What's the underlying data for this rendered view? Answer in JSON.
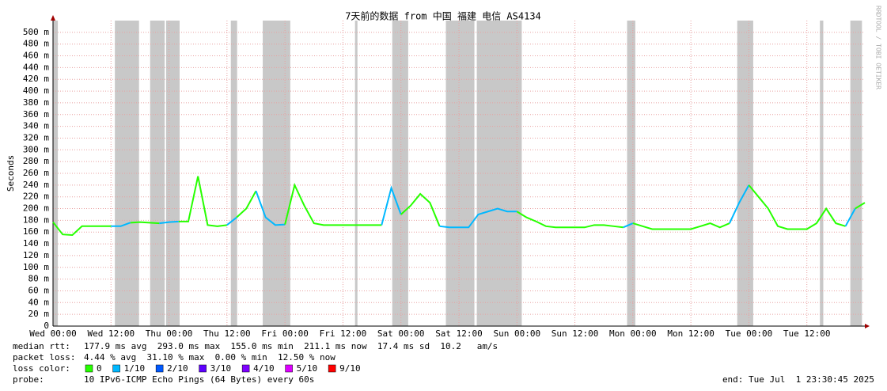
{
  "chart_data": {
    "type": "line",
    "title": "7天前的数据 from 中国 福建 电信 AS4134",
    "y_label": "Seconds",
    "watermark": "RRDTOOL / TOBI OETIKER",
    "xlim": [
      0,
      168
    ],
    "ylim": [
      0,
      520
    ],
    "xticks": [
      {
        "value": 0,
        "label": "Wed 00:00"
      },
      {
        "value": 12,
        "label": "Wed 12:00"
      },
      {
        "value": 24,
        "label": "Thu 00:00"
      },
      {
        "value": 36,
        "label": "Thu 12:00"
      },
      {
        "value": 48,
        "label": "Fri 00:00"
      },
      {
        "value": 60,
        "label": "Fri 12:00"
      },
      {
        "value": 72,
        "label": "Sat 00:00"
      },
      {
        "value": 84,
        "label": "Sat 12:00"
      },
      {
        "value": 96,
        "label": "Sun 00:00"
      },
      {
        "value": 108,
        "label": "Sun 12:00"
      },
      {
        "value": 120,
        "label": "Mon 00:00"
      },
      {
        "value": 132,
        "label": "Mon 12:00"
      },
      {
        "value": 144,
        "label": "Tue 00:00"
      },
      {
        "value": 156,
        "label": "Tue 12:00"
      }
    ],
    "yticks": [
      0,
      {
        "value": 20,
        "label": "20 m"
      },
      {
        "value": 40,
        "label": "40 m"
      },
      {
        "value": 60,
        "label": "60 m"
      },
      {
        "value": 80,
        "label": "80 m"
      },
      {
        "value": 100,
        "label": "100 m"
      },
      {
        "value": 120,
        "label": "120 m"
      },
      {
        "value": 140,
        "label": "140 m"
      },
      {
        "value": 160,
        "label": "160 m"
      },
      {
        "value": 180,
        "label": "180 m"
      },
      {
        "value": 200,
        "label": "200 m"
      },
      {
        "value": 220,
        "label": "220 m"
      },
      {
        "value": 240,
        "label": "240 m"
      },
      {
        "value": 260,
        "label": "260 m"
      },
      {
        "value": 280,
        "label": "280 m"
      },
      {
        "value": 300,
        "label": "300 m"
      },
      {
        "value": 320,
        "label": "320 m"
      },
      {
        "value": 340,
        "label": "340 m"
      },
      {
        "value": 360,
        "label": "360 m"
      },
      {
        "value": 380,
        "label": "380 m"
      },
      {
        "value": 400,
        "label": "400 m"
      },
      {
        "value": 420,
        "label": "420 m"
      },
      {
        "value": 440,
        "label": "440 m"
      },
      {
        "value": 460,
        "label": "460 m"
      },
      {
        "value": 480,
        "label": "480 m"
      },
      {
        "value": 500,
        "label": "500 m"
      }
    ],
    "grid": true,
    "grid_color": "#e8a0a0",
    "band_color": "#c8c8c8",
    "x": [
      0,
      2,
      4,
      6,
      8,
      10,
      12,
      14,
      16,
      18,
      20,
      22,
      24,
      26,
      28,
      30,
      32,
      34,
      36,
      38,
      40,
      42,
      44,
      46,
      48,
      50,
      52,
      54,
      56,
      58,
      60,
      62,
      64,
      66,
      68,
      70,
      72,
      74,
      76,
      78,
      80,
      82,
      84,
      86,
      88,
      90,
      92,
      94,
      96,
      98,
      100,
      102,
      104,
      106,
      108,
      110,
      112,
      114,
      116,
      118,
      120,
      122,
      124,
      126,
      128,
      130,
      132,
      134,
      136,
      138,
      140,
      142,
      144,
      146,
      148,
      150,
      152,
      154,
      156,
      158,
      160,
      162,
      164,
      166,
      168
    ],
    "series": [
      {
        "name": "median rtt",
        "values": [
          177,
          156,
          155,
          170,
          170,
          170,
          170,
          170,
          176,
          177,
          176,
          175,
          177,
          178,
          178,
          255,
          172,
          170,
          172,
          185,
          200,
          230,
          185,
          172,
          173,
          240,
          205,
          175,
          172,
          172,
          172,
          172,
          172,
          172,
          172,
          235,
          190,
          205,
          225,
          210,
          170,
          168,
          168,
          168,
          190,
          195,
          200,
          195,
          195,
          185,
          178,
          170,
          168,
          168,
          168,
          168,
          172,
          172,
          170,
          168,
          175,
          170,
          165,
          165,
          165,
          165,
          165,
          170,
          175,
          168,
          175,
          210,
          240,
          220,
          200,
          170,
          165,
          165,
          165,
          175,
          200,
          175,
          170,
          200,
          210
        ],
        "loss": [
          0,
          0,
          0,
          0,
          0,
          0,
          0,
          1,
          1,
          0,
          0,
          0,
          1,
          1,
          0,
          0,
          0,
          0,
          0,
          1,
          0,
          0,
          1,
          1,
          1,
          0,
          0,
          0,
          0,
          0,
          0,
          0,
          0,
          0,
          0,
          1,
          1,
          0,
          0,
          0,
          0,
          1,
          1,
          1,
          1,
          1,
          1,
          1,
          1,
          0,
          0,
          0,
          0,
          0,
          0,
          0,
          0,
          0,
          0,
          0,
          1,
          0,
          0,
          0,
          0,
          0,
          0,
          0,
          0,
          0,
          0,
          1,
          1,
          0,
          0,
          0,
          0,
          0,
          0,
          0,
          0,
          0,
          0,
          1,
          0
        ]
      }
    ],
    "loss_bands": [
      [
        0,
        1
      ],
      [
        12.8,
        17.8
      ],
      [
        20.1,
        23.1
      ],
      [
        23.4,
        26.2
      ],
      [
        36.8,
        38.1
      ],
      [
        43.4,
        49.1
      ],
      [
        62.5,
        63
      ],
      [
        70.2,
        73.5
      ],
      [
        81.3,
        87.2
      ],
      [
        87.7,
        97
      ],
      [
        118.8,
        120.5
      ],
      [
        141.6,
        144.9
      ],
      [
        158.7,
        159.4
      ],
      [
        165,
        167.4
      ]
    ],
    "stats": [
      {
        "label": "median rtt:",
        "text": "177.9 ms avg  293.0 ms max  155.0 ms min  211.1 ms now  17.4 ms sd  10.2   am/s"
      },
      {
        "label": "packet loss:",
        "text": "4.44 % avg  31.10 % max  0.00 % min  12.50 % now"
      }
    ],
    "loss_legend": {
      "label": "loss color:",
      "entries": [
        {
          "label": "0",
          "color": "#26ff00"
        },
        {
          "label": "1/10",
          "color": "#00b8ff"
        },
        {
          "label": "2/10",
          "color": "#0059ff"
        },
        {
          "label": "3/10",
          "color": "#5e00ff"
        },
        {
          "label": "4/10",
          "color": "#7e00ff"
        },
        {
          "label": "5/10",
          "color": "#dd00ff"
        },
        {
          "label": "9/10",
          "color": "#ff0000"
        }
      ]
    },
    "probe": {
      "label": "probe:",
      "text": "10 IPv6-ICMP Echo Pings (64 Bytes) every 60s"
    },
    "end": "end: Tue Jul  1 23:30:45 2025"
  }
}
